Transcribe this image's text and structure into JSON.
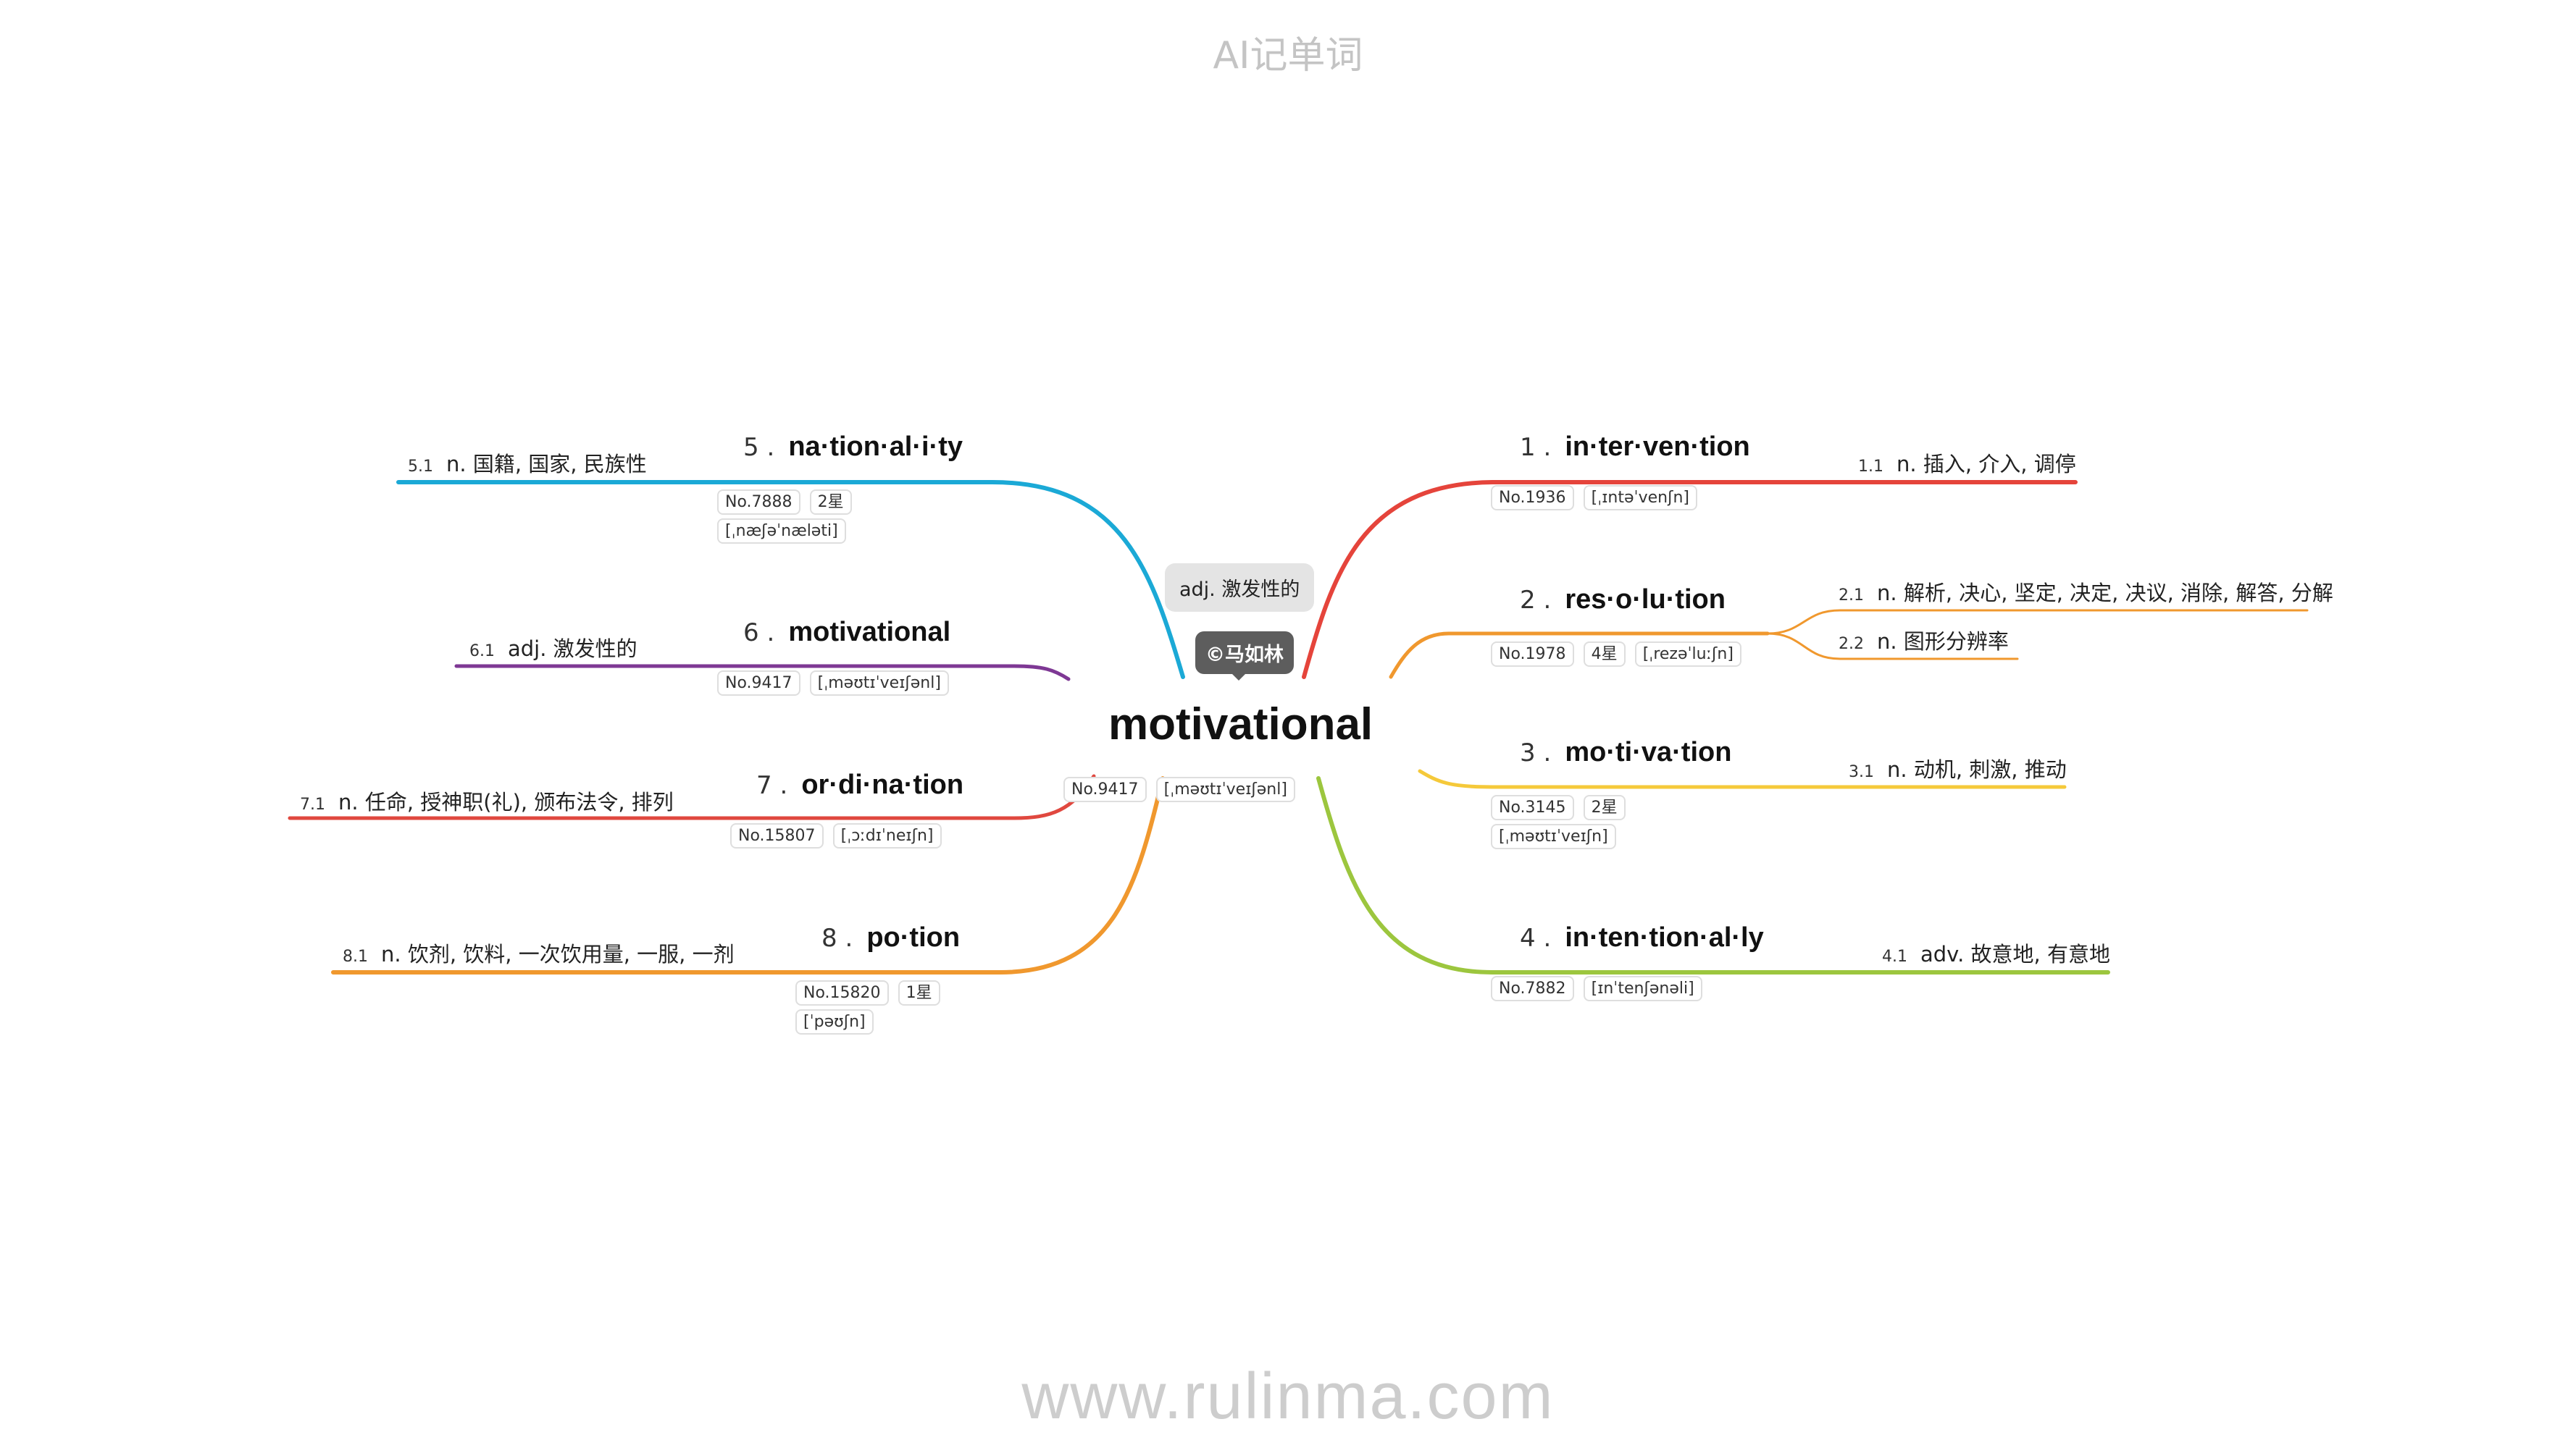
{
  "header": "AI记单词",
  "footer": "www.rulinma.com",
  "center": {
    "word": "motivational",
    "meaning": "adj. 激发性的",
    "copyright": "©马如林",
    "tags": [
      "No.9417",
      "[ˌməʊtɪˈveɪʃənl]"
    ]
  },
  "branches": [
    {
      "num": "1 .",
      "word": "in·ter·ven·tion",
      "color": "#e5443b",
      "tags": [
        "No.1936",
        "[ˌɪntəˈvenʃn]"
      ],
      "defs": [
        {
          "idx": "1.1",
          "text": "n. 插入, 介入, 调停"
        }
      ]
    },
    {
      "num": "2 .",
      "word": "res·o·lu·tion",
      "color": "#f0982e",
      "tags": [
        "No.1978",
        "4星",
        "[ˌrezəˈluːʃn]"
      ],
      "defs": [
        {
          "idx": "2.1",
          "text": "n. 解析, 决心, 坚定, 决定, 决议, 消除, 解答, 分解"
        },
        {
          "idx": "2.2",
          "text": "n. 图形分辨率"
        }
      ]
    },
    {
      "num": "3 .",
      "word": "mo·ti·va·tion",
      "color": "#f5c93a",
      "tags": [
        "No.3145",
        "2星",
        "[ˌməʊtɪˈveɪʃn]"
      ],
      "defs": [
        {
          "idx": "3.1",
          "text": "n. 动机, 刺激, 推动"
        }
      ]
    },
    {
      "num": "4 .",
      "word": "in·ten·tion·al·ly",
      "color": "#9cc63e",
      "tags": [
        "No.7882",
        "[ɪnˈtenʃənəli]"
      ],
      "defs": [
        {
          "idx": "4.1",
          "text": "adv. 故意地, 有意地"
        }
      ]
    },
    {
      "num": "5 .",
      "word": "na·tion·al·i·ty",
      "color": "#1ba9d6",
      "tags": [
        "No.7888",
        "2星",
        "[ˌnæʃəˈnæləti]"
      ],
      "defs": [
        {
          "idx": "5.1",
          "text": "n. 国籍, 国家, 民族性"
        }
      ]
    },
    {
      "num": "6 .",
      "word": "motivational",
      "color": "#7e3894",
      "tags": [
        "No.9417",
        "[ˌməʊtɪˈveɪʃənl]"
      ],
      "defs": [
        {
          "idx": "6.1",
          "text": "adj. 激发性的"
        }
      ]
    },
    {
      "num": "7 .",
      "word": "or·di·na·tion",
      "color": "#e0483f",
      "tags": [
        "No.15807",
        "[ˌɔːdɪˈneɪʃn]"
      ],
      "defs": [
        {
          "idx": "7.1",
          "text": "n. 任命, 授神职(礼), 颁布法令, 排列"
        }
      ]
    },
    {
      "num": "8 .",
      "word": "po·tion",
      "color": "#f0982e",
      "tags": [
        "No.15820",
        "1星",
        "[ˈpəʊʃn]"
      ],
      "defs": [
        {
          "idx": "8.1",
          "text": "n. 饮剂, 饮料, 一次饮用量, 一服, 一剂"
        }
      ]
    }
  ]
}
